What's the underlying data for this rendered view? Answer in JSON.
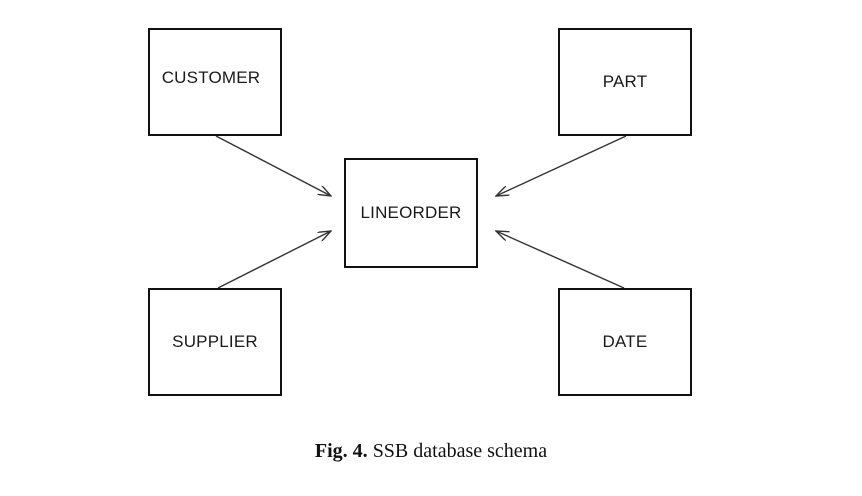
{
  "diagram": {
    "entities": {
      "customer": "CUSTOMER",
      "part": "PART",
      "lineorder": "LINEORDER",
      "supplier": "SUPPLIER",
      "date": "DATE"
    },
    "edges": [
      {
        "from": "CUSTOMER",
        "to": "LINEORDER"
      },
      {
        "from": "PART",
        "to": "LINEORDER"
      },
      {
        "from": "SUPPLIER",
        "to": "LINEORDER"
      },
      {
        "from": "DATE",
        "to": "LINEORDER"
      }
    ]
  },
  "caption": {
    "label": "Fig. 4.",
    "text": "SSB database schema"
  },
  "colors": {
    "line": "#333333",
    "border": "#111111"
  }
}
